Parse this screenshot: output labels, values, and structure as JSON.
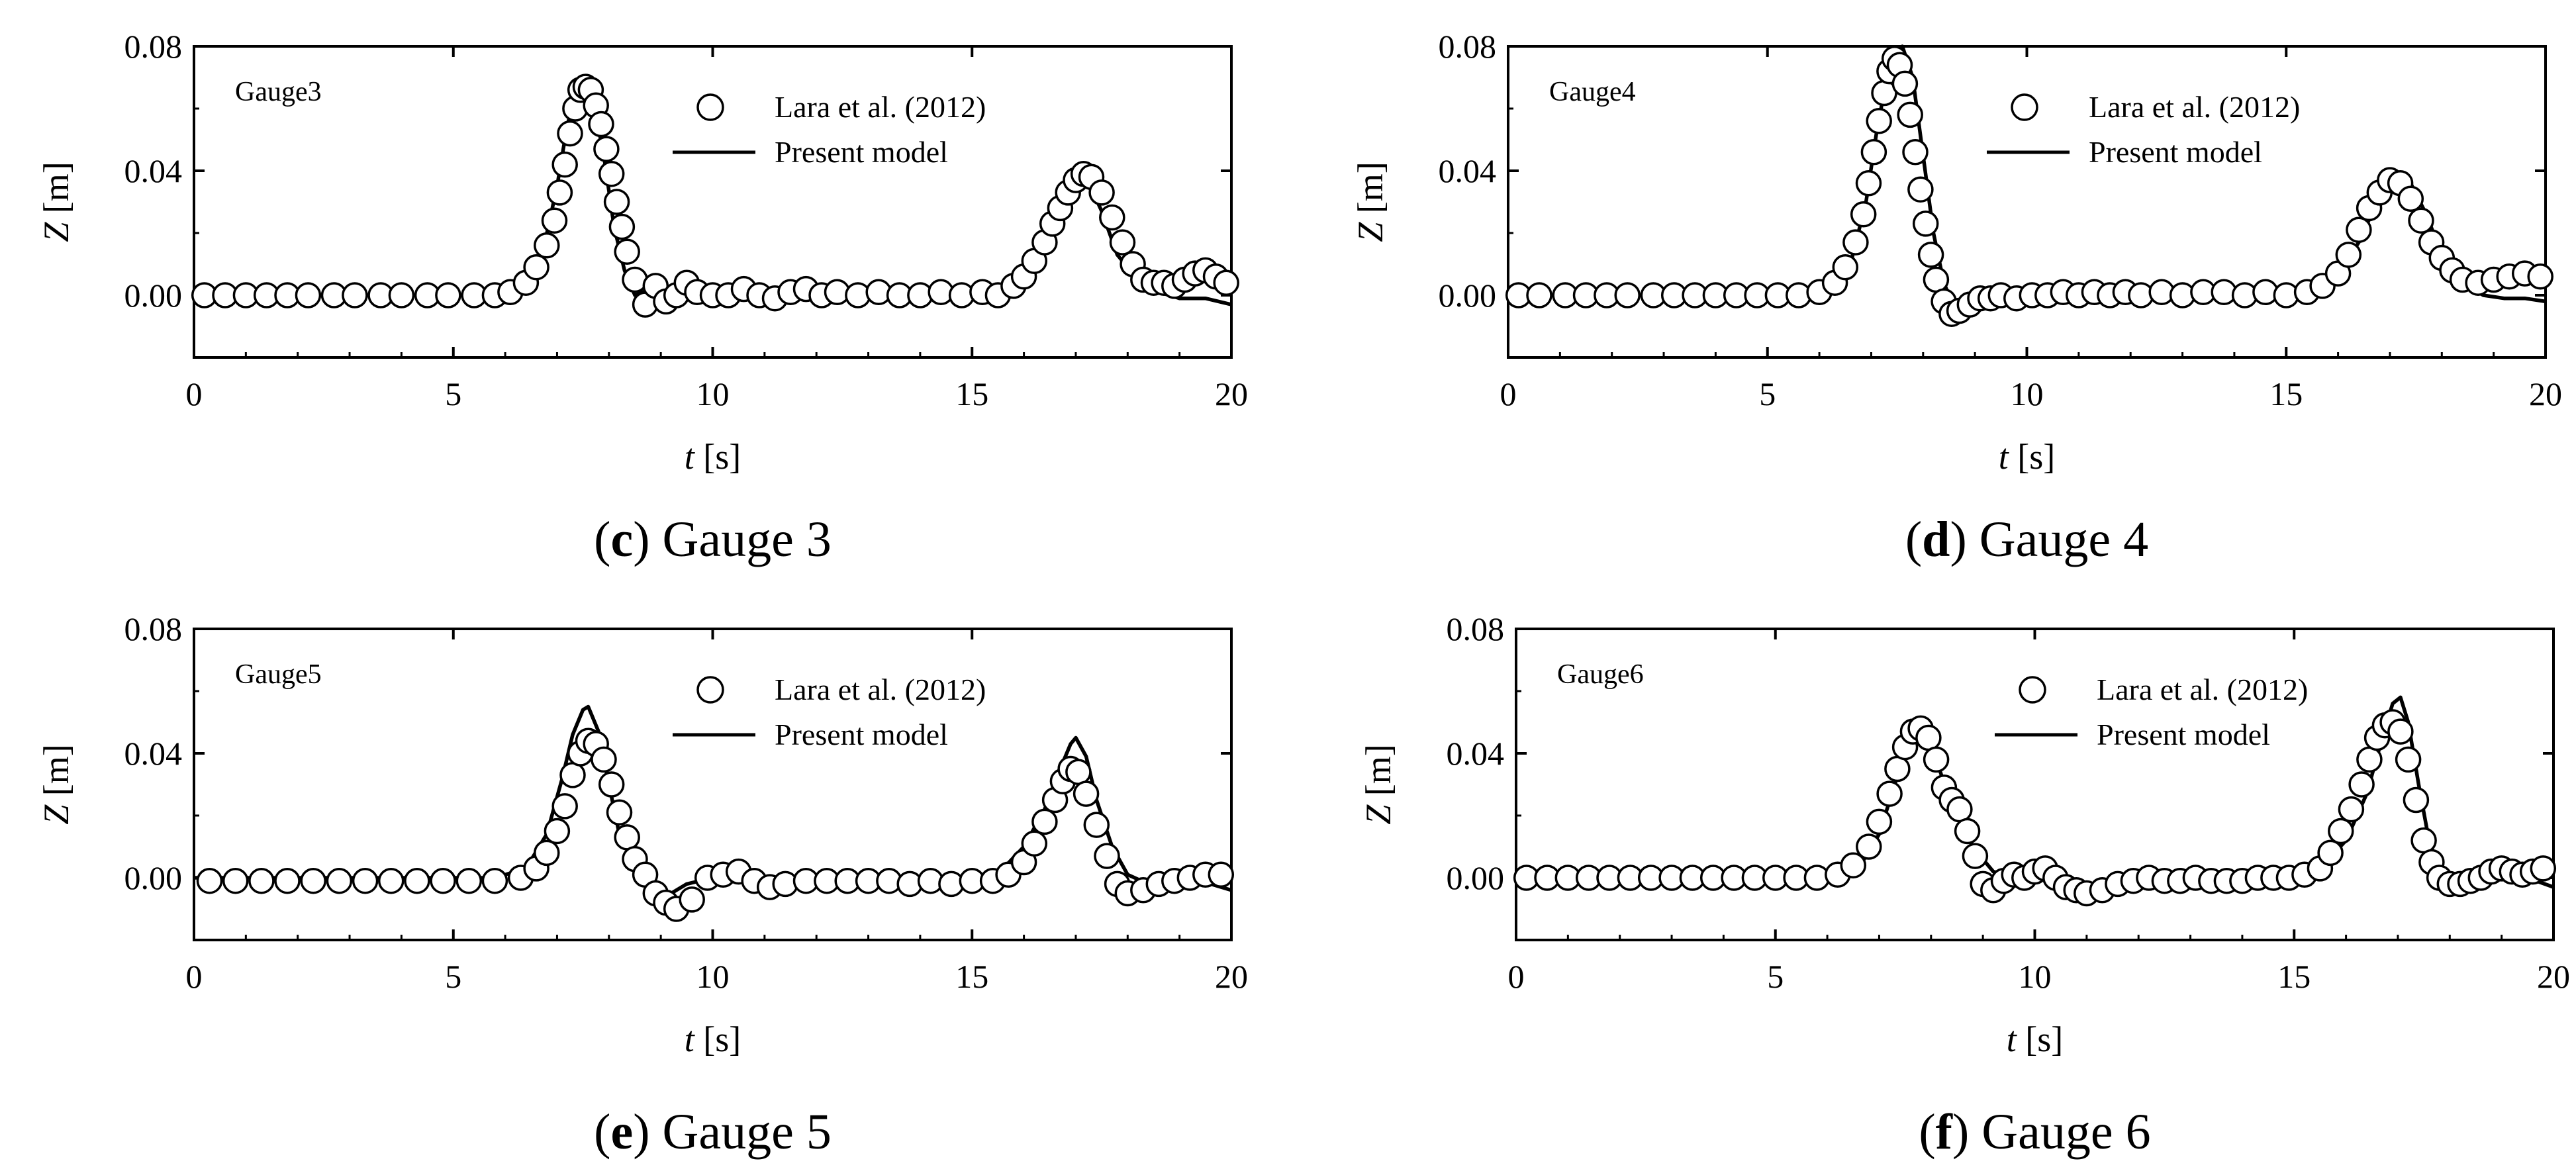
{
  "colors": {
    "line": "#000000",
    "marker_fill": "#ffffff",
    "background": "#ffffff"
  },
  "chart_data": [
    {
      "type": "line",
      "panel": "c",
      "caption_letter": "c",
      "caption_text": "Gauge 3",
      "gauge_label": "Gauge3",
      "xlabel_var": "t",
      "xlabel_unit": "[s]",
      "ylabel_var": "Z",
      "ylabel_unit": "[m]",
      "xlim": [
        0,
        20
      ],
      "ylim": [
        -0.02,
        0.08
      ],
      "xticks": [
        "0",
        "5",
        "10",
        "15",
        "20"
      ],
      "yticks": [
        "0.00",
        "0.04",
        "0.08"
      ],
      "legend": {
        "position": "top-center",
        "markers_label": "Lara et al. (2012)",
        "line_label": "Present model"
      },
      "series": [
        {
          "name": "Present model",
          "style": "line",
          "x": [
            0,
            5.5,
            6.2,
            6.7,
            7.0,
            7.2,
            7.4,
            7.5,
            7.7,
            7.9,
            8.1,
            8.3,
            8.5,
            8.8,
            9.1,
            9.5,
            10,
            12,
            14,
            15,
            15.6,
            16.0,
            16.3,
            16.6,
            16.9,
            17.0,
            17.2,
            17.5,
            17.8,
            18.2,
            18.6,
            19.0,
            19.5,
            20
          ],
          "y": [
            0,
            0,
            0.002,
            0.012,
            0.035,
            0.055,
            0.066,
            0.068,
            0.062,
            0.045,
            0.022,
            0.008,
            0.0,
            0.002,
            -0.001,
            0.001,
            0,
            0,
            0,
            0,
            0.002,
            0.008,
            0.018,
            0.03,
            0.039,
            0.041,
            0.038,
            0.027,
            0.013,
            0.005,
            0.001,
            -0.001,
            -0.001,
            -0.003
          ]
        },
        {
          "name": "Lara et al. (2012)",
          "style": "markers",
          "x": [
            0.2,
            0.6,
            1.0,
            1.4,
            1.8,
            2.2,
            2.7,
            3.1,
            3.6,
            4.0,
            4.5,
            4.9,
            5.4,
            5.8,
            6.1,
            6.4,
            6.6,
            6.8,
            6.95,
            7.05,
            7.15,
            7.25,
            7.35,
            7.45,
            7.55,
            7.65,
            7.75,
            7.85,
            7.95,
            8.05,
            8.15,
            8.25,
            8.35,
            8.5,
            8.7,
            8.9,
            9.1,
            9.3,
            9.5,
            9.7,
            10.0,
            10.3,
            10.6,
            10.9,
            11.2,
            11.5,
            11.8,
            12.1,
            12.4,
            12.8,
            13.2,
            13.6,
            14.0,
            14.4,
            14.8,
            15.2,
            15.5,
            15.8,
            16.0,
            16.2,
            16.4,
            16.55,
            16.7,
            16.85,
            17.0,
            17.15,
            17.3,
            17.5,
            17.7,
            17.9,
            18.1,
            18.3,
            18.5,
            18.7,
            18.9,
            19.1,
            19.3,
            19.5,
            19.7,
            19.9
          ],
          "y": [
            0.0,
            0.0,
            0.0,
            0.0,
            0.0,
            0.0,
            0.0,
            0.0,
            0.0,
            0.0,
            0.0,
            0.0,
            0.0,
            0.0,
            0.001,
            0.004,
            0.009,
            0.016,
            0.024,
            0.033,
            0.042,
            0.052,
            0.06,
            0.066,
            0.067,
            0.066,
            0.061,
            0.055,
            0.047,
            0.039,
            0.03,
            0.022,
            0.014,
            0.005,
            -0.003,
            0.003,
            -0.002,
            0.0,
            0.004,
            0.001,
            0.0,
            0.0,
            0.002,
            0.0,
            -0.001,
            0.001,
            0.002,
            0.0,
            0.001,
            0.0,
            0.001,
            0.0,
            0.0,
            0.001,
            0.0,
            0.001,
            0.0,
            0.003,
            0.006,
            0.011,
            0.017,
            0.023,
            0.028,
            0.033,
            0.037,
            0.039,
            0.038,
            0.033,
            0.025,
            0.017,
            0.01,
            0.005,
            0.004,
            0.004,
            0.003,
            0.005,
            0.007,
            0.008,
            0.006,
            0.004
          ]
        }
      ]
    },
    {
      "type": "line",
      "panel": "d",
      "caption_letter": "d",
      "caption_text": "Gauge 4",
      "gauge_label": "Gauge4",
      "xlabel_var": "t",
      "xlabel_unit": "[s]",
      "ylabel_var": "Z",
      "ylabel_unit": "[m]",
      "xlim": [
        0,
        20
      ],
      "ylim": [
        -0.02,
        0.08
      ],
      "xticks": [
        "0",
        "5",
        "10",
        "15",
        "20"
      ],
      "yticks": [
        "0.00",
        "0.04",
        "0.08"
      ],
      "legend": {
        "position": "top-center",
        "markers_label": "Lara et al. (2012)",
        "line_label": "Present model"
      },
      "series": [
        {
          "name": "Present model",
          "style": "line",
          "x": [
            0,
            5.5,
            6.2,
            6.6,
            6.9,
            7.1,
            7.3,
            7.5,
            7.6,
            7.8,
            8.0,
            8.2,
            8.4,
            8.6,
            8.9,
            9.3,
            10,
            12,
            14,
            15,
            15.6,
            16.0,
            16.4,
            16.7,
            17.0,
            17.2,
            17.4,
            17.7,
            18.0,
            18.4,
            18.8,
            19.2,
            19.6,
            20
          ],
          "y": [
            0,
            0,
            0.002,
            0.01,
            0.03,
            0.052,
            0.07,
            0.079,
            0.08,
            0.07,
            0.045,
            0.02,
            0.004,
            -0.004,
            -0.004,
            -0.002,
            -0.001,
            0,
            0,
            0,
            0.002,
            0.007,
            0.017,
            0.028,
            0.037,
            0.039,
            0.036,
            0.026,
            0.013,
            0.004,
            0.0,
            -0.001,
            -0.001,
            -0.002
          ]
        },
        {
          "name": "Lara et al. (2012)",
          "style": "markers",
          "x": [
            0.2,
            0.6,
            1.1,
            1.5,
            1.9,
            2.3,
            2.8,
            3.2,
            3.6,
            4.0,
            4.4,
            4.8,
            5.2,
            5.6,
            6.0,
            6.3,
            6.5,
            6.7,
            6.85,
            6.95,
            7.05,
            7.15,
            7.25,
            7.35,
            7.45,
            7.55,
            7.65,
            7.75,
            7.85,
            7.95,
            8.05,
            8.15,
            8.25,
            8.4,
            8.55,
            8.7,
            8.9,
            9.1,
            9.3,
            9.5,
            9.8,
            10.1,
            10.4,
            10.7,
            11.0,
            11.3,
            11.6,
            11.9,
            12.2,
            12.6,
            13.0,
            13.4,
            13.8,
            14.2,
            14.6,
            15.0,
            15.4,
            15.7,
            16.0,
            16.2,
            16.4,
            16.6,
            16.8,
            17.0,
            17.2,
            17.4,
            17.6,
            17.8,
            18.0,
            18.2,
            18.4,
            18.7,
            19.0,
            19.3,
            19.6,
            19.9
          ],
          "y": [
            0.0,
            0.0,
            0.0,
            0.0,
            0.0,
            0.0,
            0.0,
            0.0,
            0.0,
            0.0,
            0.0,
            0.0,
            0.0,
            0.0,
            0.001,
            0.004,
            0.009,
            0.017,
            0.026,
            0.036,
            0.046,
            0.056,
            0.065,
            0.072,
            0.076,
            0.074,
            0.068,
            0.058,
            0.046,
            0.034,
            0.023,
            0.013,
            0.005,
            -0.002,
            -0.006,
            -0.005,
            -0.003,
            -0.001,
            -0.001,
            0.0,
            -0.001,
            0.0,
            0.0,
            0.001,
            0.0,
            0.001,
            0.0,
            0.001,
            0.0,
            0.001,
            0.0,
            0.001,
            0.001,
            0.0,
            0.001,
            0.0,
            0.001,
            0.003,
            0.007,
            0.013,
            0.021,
            0.028,
            0.033,
            0.037,
            0.036,
            0.031,
            0.024,
            0.017,
            0.012,
            0.008,
            0.005,
            0.004,
            0.005,
            0.006,
            0.007,
            0.006
          ]
        }
      ]
    },
    {
      "type": "line",
      "panel": "e",
      "caption_letter": "e",
      "caption_text": "Gauge 5",
      "gauge_label": "Gauge5",
      "xlabel_var": "t",
      "xlabel_unit": "[s]",
      "ylabel_var": "Z",
      "ylabel_unit": "[m]",
      "xlim": [
        0,
        20
      ],
      "ylim": [
        -0.02,
        0.08
      ],
      "xticks": [
        "0",
        "5",
        "10",
        "15",
        "20"
      ],
      "yticks": [
        "0.00",
        "0.04",
        "0.08"
      ],
      "legend": {
        "position": "top-center",
        "markers_label": "Lara et al. (2012)",
        "line_label": "Present model"
      },
      "series": [
        {
          "name": "Present model",
          "style": "line",
          "x": [
            0,
            5.8,
            6.4,
            6.8,
            7.1,
            7.3,
            7.5,
            7.6,
            7.8,
            8.0,
            8.2,
            8.5,
            8.8,
            9.1,
            9.5,
            10,
            12,
            14,
            15,
            15.6,
            16.0,
            16.4,
            16.7,
            16.9,
            17.0,
            17.2,
            17.4,
            17.7,
            18.0,
            18.4,
            18.8,
            19.2,
            19.6,
            20
          ],
          "y": [
            0,
            0,
            0.003,
            0.014,
            0.032,
            0.046,
            0.054,
            0.055,
            0.047,
            0.03,
            0.014,
            0.004,
            -0.003,
            -0.006,
            -0.002,
            0.0,
            0,
            0,
            0.0,
            0.003,
            0.01,
            0.022,
            0.035,
            0.043,
            0.045,
            0.039,
            0.025,
            0.01,
            0.001,
            -0.002,
            -0.001,
            -0.001,
            -0.002,
            -0.004
          ]
        },
        {
          "name": "Lara et al. (2012)",
          "style": "markers",
          "x": [
            0.3,
            0.8,
            1.3,
            1.8,
            2.3,
            2.8,
            3.3,
            3.8,
            4.3,
            4.8,
            5.3,
            5.8,
            6.3,
            6.6,
            6.8,
            7.0,
            7.15,
            7.3,
            7.45,
            7.6,
            7.75,
            7.9,
            8.05,
            8.2,
            8.35,
            8.5,
            8.7,
            8.9,
            9.1,
            9.3,
            9.6,
            9.9,
            10.2,
            10.5,
            10.8,
            11.1,
            11.4,
            11.8,
            12.2,
            12.6,
            13.0,
            13.4,
            13.8,
            14.2,
            14.6,
            15.0,
            15.4,
            15.7,
            16.0,
            16.2,
            16.4,
            16.6,
            16.75,
            16.9,
            17.05,
            17.2,
            17.4,
            17.6,
            17.8,
            18.0,
            18.3,
            18.6,
            18.9,
            19.2,
            19.5,
            19.8
          ],
          "y": [
            -0.001,
            -0.001,
            -0.001,
            -0.001,
            -0.001,
            -0.001,
            -0.001,
            -0.001,
            -0.001,
            -0.001,
            -0.001,
            -0.001,
            0.0,
            0.003,
            0.008,
            0.015,
            0.023,
            0.033,
            0.04,
            0.044,
            0.043,
            0.038,
            0.03,
            0.021,
            0.013,
            0.006,
            0.001,
            -0.005,
            -0.008,
            -0.01,
            -0.007,
            0.0,
            0.001,
            0.002,
            -0.001,
            -0.003,
            -0.002,
            -0.001,
            -0.001,
            -0.001,
            -0.001,
            -0.001,
            -0.002,
            -0.001,
            -0.002,
            -0.001,
            -0.001,
            0.001,
            0.005,
            0.011,
            0.018,
            0.025,
            0.031,
            0.035,
            0.034,
            0.027,
            0.017,
            0.007,
            -0.002,
            -0.005,
            -0.004,
            -0.002,
            -0.001,
            0.0,
            0.001,
            0.001
          ]
        }
      ]
    },
    {
      "type": "line",
      "panel": "f",
      "caption_letter": "f",
      "caption_text": "Gauge 6",
      "gauge_label": "Gauge6",
      "xlabel_var": "t",
      "xlabel_unit": "[s]",
      "ylabel_var": "Z",
      "ylabel_unit": "[m]",
      "xlim": [
        0,
        20
      ],
      "ylim": [
        -0.02,
        0.08
      ],
      "xticks": [
        "0",
        "5",
        "10",
        "15",
        "20"
      ],
      "yticks": [
        "0.00",
        "0.04",
        "0.08"
      ],
      "legend": {
        "position": "top-center",
        "markers_label": "Lara et al. (2012)",
        "line_label": "Present model"
      },
      "series": [
        {
          "name": "Present model",
          "style": "line",
          "x": [
            0,
            6.0,
            6.6,
            7.0,
            7.3,
            7.5,
            7.7,
            7.9,
            8.1,
            8.3,
            8.5,
            8.8,
            9.2,
            9.6,
            10.0,
            10.5,
            11.0,
            12,
            14,
            15.5,
            16.0,
            16.4,
            16.7,
            16.9,
            17.05,
            17.2,
            17.4,
            17.6,
            17.8,
            18.1,
            18.5,
            19.0,
            19.5,
            20
          ],
          "y": [
            0,
            0,
            0.003,
            0.014,
            0.03,
            0.041,
            0.047,
            0.046,
            0.038,
            0.028,
            0.022,
            0.01,
            0.002,
            0.0,
            0.001,
            -0.002,
            -0.004,
            -0.002,
            -0.001,
            0.003,
            0.012,
            0.027,
            0.045,
            0.056,
            0.058,
            0.05,
            0.03,
            0.012,
            0.003,
            0.0,
            -0.001,
            0.001,
            0.0,
            -0.003
          ]
        },
        {
          "name": "Lara et al. (2012)",
          "style": "markers",
          "x": [
            0.2,
            0.6,
            1.0,
            1.4,
            1.8,
            2.2,
            2.6,
            3.0,
            3.4,
            3.8,
            4.2,
            4.6,
            5.0,
            5.4,
            5.8,
            6.2,
            6.5,
            6.8,
            7.0,
            7.2,
            7.35,
            7.5,
            7.65,
            7.8,
            7.95,
            8.1,
            8.25,
            8.4,
            8.55,
            8.7,
            8.85,
            9.0,
            9.2,
            9.4,
            9.6,
            9.8,
            10.0,
            10.2,
            10.4,
            10.6,
            10.8,
            11.0,
            11.3,
            11.6,
            11.9,
            12.2,
            12.5,
            12.8,
            13.1,
            13.4,
            13.7,
            14.0,
            14.3,
            14.6,
            14.9,
            15.2,
            15.5,
            15.7,
            15.9,
            16.1,
            16.3,
            16.45,
            16.6,
            16.75,
            16.9,
            17.05,
            17.2,
            17.35,
            17.5,
            17.65,
            17.8,
            18.0,
            18.2,
            18.4,
            18.6,
            18.8,
            19.0,
            19.2,
            19.4,
            19.6,
            19.8
          ],
          "y": [
            0.0,
            0.0,
            0.0,
            0.0,
            0.0,
            0.0,
            0.0,
            0.0,
            0.0,
            0.0,
            0.0,
            0.0,
            0.0,
            0.0,
            0.0,
            0.001,
            0.004,
            0.01,
            0.018,
            0.027,
            0.035,
            0.042,
            0.047,
            0.048,
            0.045,
            0.038,
            0.029,
            0.025,
            0.022,
            0.015,
            0.007,
            -0.002,
            -0.004,
            -0.001,
            0.001,
            0.0,
            0.002,
            0.003,
            0.0,
            -0.003,
            -0.004,
            -0.005,
            -0.004,
            -0.002,
            -0.001,
            0.0,
            -0.001,
            -0.001,
            0.0,
            -0.001,
            -0.001,
            -0.001,
            0.0,
            0.0,
            0.0,
            0.001,
            0.003,
            0.008,
            0.015,
            0.022,
            0.03,
            0.038,
            0.045,
            0.049,
            0.05,
            0.047,
            0.038,
            0.025,
            0.012,
            0.005,
            0.0,
            -0.002,
            -0.002,
            -0.001,
            0.0,
            0.002,
            0.003,
            0.002,
            0.001,
            0.002,
            0.003
          ]
        }
      ]
    }
  ]
}
